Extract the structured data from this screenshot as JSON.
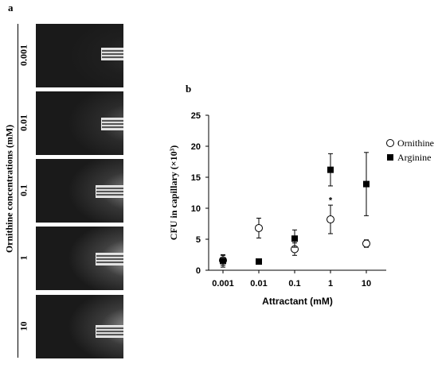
{
  "panel_a": {
    "letter": "a",
    "side_label": "Ornithine concentrations (mM)",
    "images": [
      {
        "label": "0.001",
        "glow": 0.1
      },
      {
        "label": "0.01",
        "glow": 0.35
      },
      {
        "label": "0.1",
        "glow": 0.6
      },
      {
        "label": "1",
        "glow": 0.8
      },
      {
        "label": "10",
        "glow": 0.7
      }
    ]
  },
  "panel_b": {
    "letter": "b"
  },
  "chart_data": {
    "type": "scatter",
    "title": "",
    "xlabel": "Attractant (mM)",
    "ylabel": "CFU in capillary (×10³)",
    "categories": [
      "0.001",
      "0.01",
      "0.1",
      "1",
      "10"
    ],
    "ylim": [
      0,
      25
    ],
    "yticks": [
      0,
      5,
      10,
      15,
      20,
      25
    ],
    "grid": false,
    "legend_position": "right",
    "series": [
      {
        "name": "Ornithine",
        "marker": "open-circle",
        "values": [
          1.6,
          6.8,
          3.4,
          8.2,
          4.3
        ],
        "errors": [
          0.8,
          1.6,
          1.0,
          2.3,
          0.6
        ]
      },
      {
        "name": "Arginine",
        "marker": "filled-square",
        "values": [
          1.5,
          1.4,
          5.1,
          16.2,
          13.9
        ],
        "errors": [
          1.0,
          0.0,
          1.4,
          2.6,
          5.1
        ]
      }
    ],
    "annotations": [
      {
        "text": "*",
        "category": "1",
        "y": 11.5
      }
    ]
  }
}
